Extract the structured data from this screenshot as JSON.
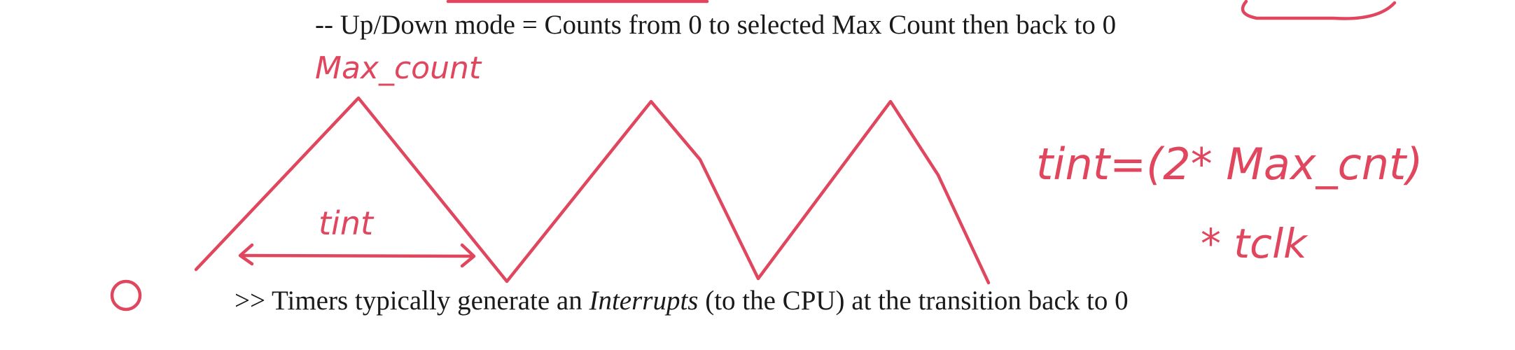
{
  "notes": {
    "updown_line": "-- Up/Down mode = Counts from 0 to selected Max Count then back to 0",
    "interrupts_line": {
      "prefix": ">> Timers typically generate an ",
      "emphasis": "Interrupts",
      "suffix": " (to the CPU) at the transition back to 0"
    }
  },
  "handwriting": {
    "max_count_label": "Max_count",
    "tint_label": "tint",
    "formula_line1": "tint=(2* Max_cnt)",
    "formula_line2": "* tclk",
    "ink_color": "#e0465e"
  }
}
